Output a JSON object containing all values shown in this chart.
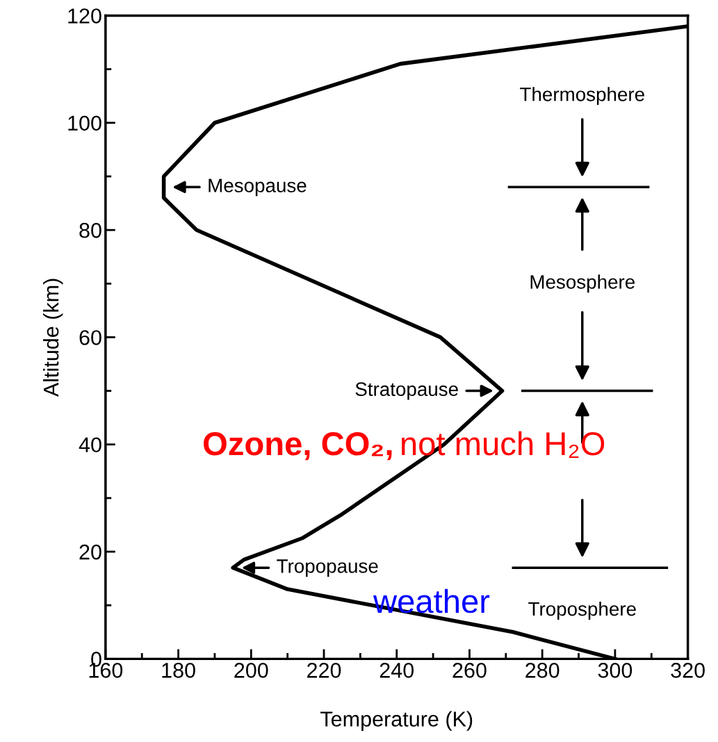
{
  "chart_data": {
    "type": "line",
    "xlabel": "Temperature (K)",
    "ylabel": "Altitude (km)",
    "x": [
      300,
      272,
      210,
      195,
      198,
      214,
      225,
      253,
      269,
      252,
      185,
      176,
      176,
      190,
      241,
      320
    ],
    "series": [
      {
        "color": "#000000",
        "values": [
          0,
          5,
          13,
          17,
          18.5,
          22.5,
          27,
          40,
          50,
          60,
          80,
          86,
          90,
          100,
          111,
          118
        ]
      }
    ],
    "xlim": [
      160,
      320
    ],
    "ylim": [
      0,
      120
    ],
    "xticks": [
      160,
      180,
      200,
      220,
      240,
      260,
      280,
      300,
      320
    ],
    "yticks": [
      0,
      20,
      40,
      60,
      80,
      100,
      120
    ],
    "grid": false,
    "legend": false,
    "marker": "none",
    "line_style": "solid",
    "ref_lines": [
      {
        "axis": "y",
        "value": 88,
        "color": "#000000"
      },
      {
        "axis": "y",
        "value": 50,
        "color": "#000000"
      },
      {
        "axis": "y",
        "value": 17,
        "color": "#000000"
      }
    ],
    "annotations": [
      {
        "text": "Mesopause",
        "x": 176,
        "y": 88
      },
      {
        "text": "Stratopause",
        "x": 269,
        "y": 50
      },
      {
        "text": "Tropopause",
        "x": 195,
        "y": 17
      },
      "Thermosphere",
      "Mesosphere",
      "Troposphere",
      "Ozone, CO₂,",
      "not much H₂O",
      "weather"
    ]
  }
}
